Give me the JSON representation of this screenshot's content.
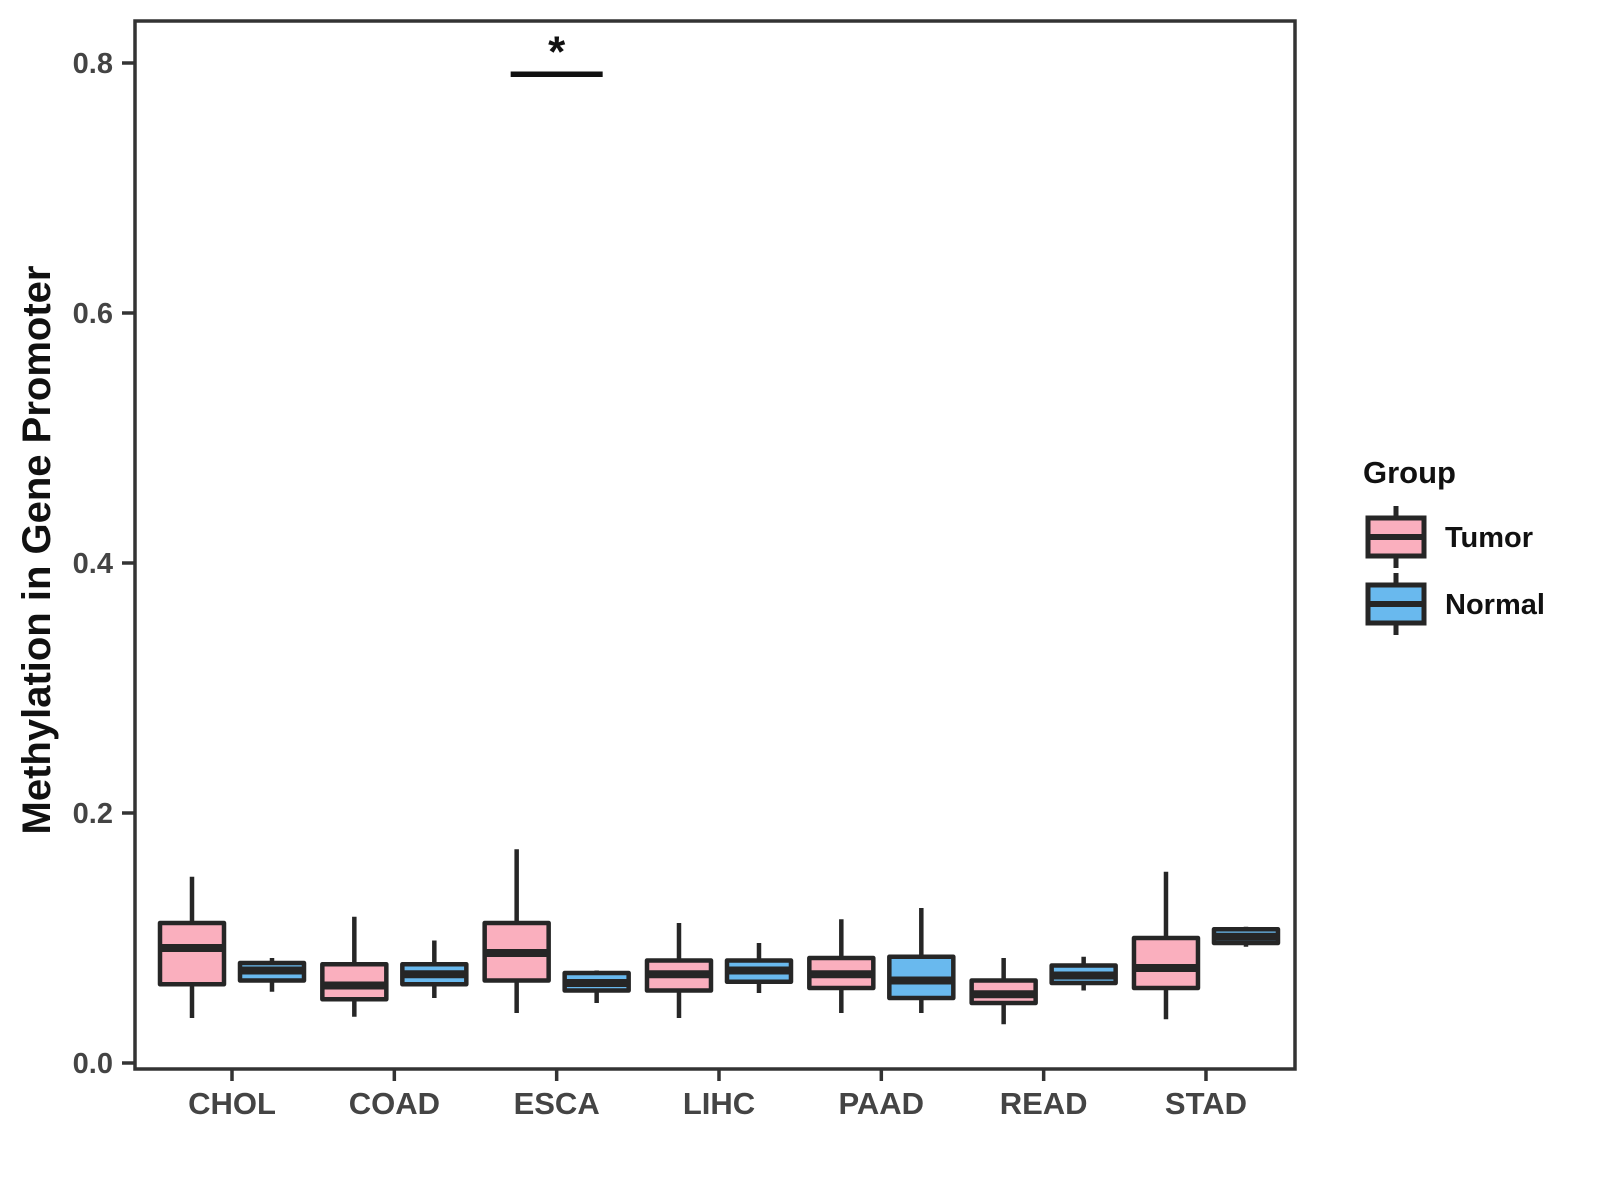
{
  "chart_data": {
    "type": "boxplot",
    "title": "",
    "xlabel": "",
    "ylabel": "Methylation in Gene Promoter",
    "ylim": [
      0,
      0.834
    ],
    "yticks": {
      "values": [
        0.0,
        0.2,
        0.4,
        0.6,
        0.8
      ],
      "labels": [
        "0.0",
        "0.2",
        "0.4",
        "0.6",
        "0.8"
      ]
    },
    "grid": "off",
    "legend_position": "right",
    "categories": [
      "CHOL",
      "COAD",
      "ESCA",
      "LIHC",
      "PAAD",
      "READ",
      "STAD"
    ],
    "groups": [
      "Tumor",
      "Normal"
    ],
    "colors": {
      "Tumor": "#FAAFBE",
      "Normal": "#69B9EE",
      "stroke": "#262626"
    },
    "series": [
      {
        "name": "Tumor",
        "boxes": [
          {
            "category": "CHOL",
            "whisker_low": 0.036,
            "q1": 0.063,
            "median": 0.092,
            "q3": 0.112,
            "whisker_high": 0.149
          },
          {
            "category": "COAD",
            "whisker_low": 0.037,
            "q1": 0.051,
            "median": 0.062,
            "q3": 0.079,
            "whisker_high": 0.117
          },
          {
            "category": "ESCA",
            "whisker_low": 0.04,
            "q1": 0.066,
            "median": 0.088,
            "q3": 0.112,
            "whisker_high": 0.171
          },
          {
            "category": "LIHC",
            "whisker_low": 0.036,
            "q1": 0.058,
            "median": 0.071,
            "q3": 0.082,
            "whisker_high": 0.112
          },
          {
            "category": "PAAD",
            "whisker_low": 0.04,
            "q1": 0.06,
            "median": 0.071,
            "q3": 0.084,
            "whisker_high": 0.115
          },
          {
            "category": "READ",
            "whisker_low": 0.031,
            "q1": 0.048,
            "median": 0.055,
            "q3": 0.066,
            "whisker_high": 0.084
          },
          {
            "category": "STAD",
            "whisker_low": 0.035,
            "q1": 0.06,
            "median": 0.076,
            "q3": 0.1,
            "whisker_high": 0.153
          }
        ]
      },
      {
        "name": "Normal",
        "boxes": [
          {
            "category": "CHOL",
            "whisker_low": 0.057,
            "q1": 0.066,
            "median": 0.074,
            "q3": 0.08,
            "whisker_high": 0.084
          },
          {
            "category": "COAD",
            "whisker_low": 0.052,
            "q1": 0.063,
            "median": 0.071,
            "q3": 0.079,
            "whisker_high": 0.098
          },
          {
            "category": "ESCA",
            "whisker_low": 0.048,
            "q1": 0.058,
            "median": 0.064,
            "q3": 0.072,
            "whisker_high": 0.074
          },
          {
            "category": "LIHC",
            "whisker_low": 0.056,
            "q1": 0.065,
            "median": 0.074,
            "q3": 0.082,
            "whisker_high": 0.096
          },
          {
            "category": "PAAD",
            "whisker_low": 0.04,
            "q1": 0.052,
            "median": 0.066,
            "q3": 0.085,
            "whisker_high": 0.124
          },
          {
            "category": "READ",
            "whisker_low": 0.058,
            "q1": 0.064,
            "median": 0.07,
            "q3": 0.078,
            "whisker_high": 0.085
          },
          {
            "category": "STAD",
            "whisker_low": 0.093,
            "q1": 0.096,
            "median": 0.101,
            "q3": 0.107,
            "whisker_high": 0.109
          }
        ]
      }
    ],
    "annotation": {
      "text": "*",
      "category": "ESCA",
      "between_groups": [
        "Tumor",
        "Normal"
      ],
      "y": 0.791
    }
  },
  "legend": {
    "title": "Group",
    "items": [
      {
        "label": "Tumor",
        "color": "#FAAFBE"
      },
      {
        "label": "Normal",
        "color": "#69B9EE"
      }
    ]
  }
}
